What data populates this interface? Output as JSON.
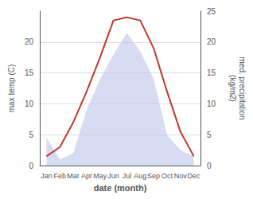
{
  "chart_data": {
    "type": "line",
    "categories": [
      "Jan",
      "Feb",
      "Mar",
      "Apr",
      "May",
      "Jun",
      "Jul",
      "Aug",
      "Sep",
      "Oct",
      "Nov",
      "Dec"
    ],
    "xlabel": "date (month)",
    "ylabel": "max temp (C)",
    "y2label": "med. precipitation\n(kg/m2)",
    "series": [
      {
        "type": "area",
        "color": "#b8c0e8",
        "axis": "y2",
        "values": [
          4.5,
          1.0,
          2.0,
          9.0,
          14.0,
          18.0,
          21.5,
          18.5,
          14.0,
          5.0,
          2.5,
          1.5
        ]
      },
      {
        "type": "line",
        "color": "#c0392b",
        "values": [
          1.5,
          3.0,
          7.0,
          12.0,
          17.5,
          23.5,
          24.0,
          23.5,
          19.0,
          12.0,
          5.5,
          1.5
        ]
      }
    ],
    "ylim": [
      0,
      25
    ],
    "yticks": [
      0,
      5,
      10,
      15,
      20
    ],
    "y2lim": [
      0,
      25
    ],
    "y2ticks": [
      0,
      5,
      10,
      15,
      20,
      25
    ],
    "grid": true
  }
}
